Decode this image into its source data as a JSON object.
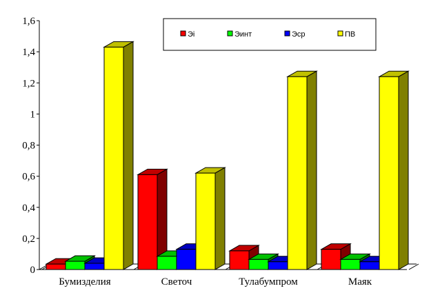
{
  "chart_data": {
    "type": "bar",
    "title": "",
    "xlabel": "",
    "ylabel": "",
    "ylim": [
      0,
      1.6
    ],
    "yticks": [
      "0",
      "0,2",
      "0,4",
      "0,6",
      "0,8",
      "1",
      "1,2",
      "1,4",
      "1,6"
    ],
    "grid": false,
    "legend_position": "top-right",
    "three_d": true,
    "categories": [
      "Бумизделия",
      "Светоч",
      "Тулабумпром",
      "Маяк"
    ],
    "series": [
      {
        "name": "Эі",
        "color": "#ff0000",
        "side": "#800000",
        "top": "#c00000",
        "values": [
          0.035,
          0.61,
          0.12,
          0.13
        ]
      },
      {
        "name": "Эинт",
        "color": "#00ff00",
        "side": "#008000",
        "top": "#00c000",
        "values": [
          0.053,
          0.085,
          0.065,
          0.065
        ]
      },
      {
        "name": "Эср",
        "color": "#0000ff",
        "side": "#000080",
        "top": "#0000c0",
        "values": [
          0.04,
          0.13,
          0.05,
          0.05
        ]
      },
      {
        "name": "ПВ",
        "color": "#ffff00",
        "side": "#808000",
        "top": "#c0c000",
        "values": [
          1.43,
          0.62,
          1.24,
          1.24
        ]
      }
    ]
  }
}
